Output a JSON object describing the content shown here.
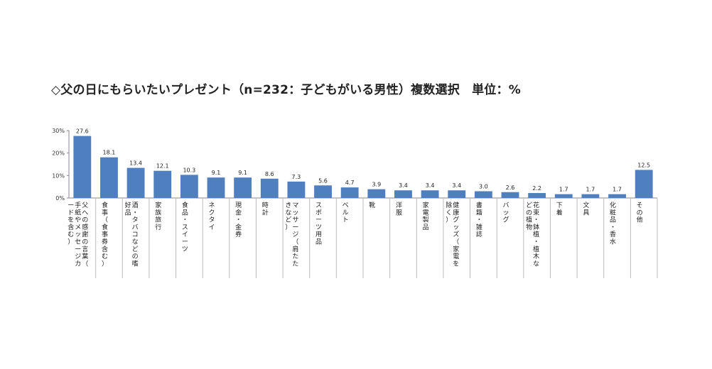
{
  "chart_data": {
    "type": "bar",
    "title": "◇父の日にもらいたいプレゼント（n=232：子どもがいる男性）複数選択　単位：%",
    "y_ticks": [
      "0%",
      "10%",
      "20%",
      "30%"
    ],
    "ylim": [
      0,
      30
    ],
    "categories": [
      "父への感謝の言葉（手紙やメッセージカードを含む）",
      "食事（食事券含む）",
      "酒・タバコなどの嗜好品",
      "家族旅行",
      "食品・スイーツ",
      "ネクタイ",
      "現金・金券",
      "時計",
      "マッサージ（肩たたきなど）",
      "スポーツ用品",
      "ベルト",
      "靴",
      "洋服",
      "家電製品",
      "健康グッズ（家電を除く）",
      "書籍・雑誌",
      "バッグ",
      "花束・鉢植・植木などの植物",
      "下着",
      "文具",
      "化粧品・香水",
      "その他"
    ],
    "values": [
      27.6,
      18.1,
      13.4,
      12.1,
      10.3,
      9.1,
      9.1,
      8.6,
      7.3,
      5.6,
      4.7,
      3.9,
      3.4,
      3.4,
      3.4,
      3.0,
      2.6,
      2.2,
      1.7,
      1.7,
      1.7,
      12.5
    ],
    "value_labels": [
      "27.6",
      "18.1",
      "13.4",
      "12.1",
      "10.3",
      "9.1",
      "9.1",
      "8.6",
      "7.3",
      "5.6",
      "4.7",
      "3.9",
      "3.4",
      "3.4",
      "3.4",
      "3.0",
      "2.6",
      "2.2",
      "1.7",
      "1.7",
      "1.7",
      "12.5"
    ],
    "bar_color": "#4f7fbf",
    "grid": false,
    "legend": "none"
  }
}
